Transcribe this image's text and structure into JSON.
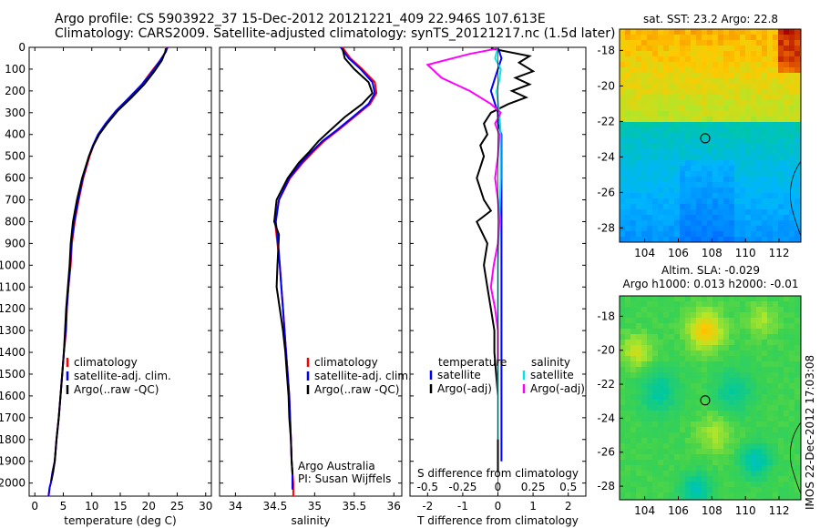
{
  "header": {
    "line1": "Argo profile: CS 5903922_37 15-Dec-2012 20121221_409 22.946S 107.613E",
    "line2": "Climatology: CARS2009. Satellite-adjusted climatology: synTS_20121217.nc (1.5d later)"
  },
  "timestamp": "IMOS 22-Dec-2012 17:03:08",
  "colors": {
    "climatology": "#ff0000",
    "satellite": "#0000ff",
    "argo": "#000000",
    "sal_satellite": "#00e5e5",
    "sal_argo": "#ff00ff"
  },
  "chart_data": [
    {
      "type": "line",
      "xlabel": "temperature (deg C)",
      "xlim": [
        -1,
        31
      ],
      "xticks": [
        0,
        5,
        10,
        15,
        20,
        25,
        30
      ],
      "ylim": [
        2060,
        0
      ],
      "yticks": [
        0,
        100,
        200,
        300,
        400,
        500,
        600,
        700,
        800,
        900,
        1000,
        1100,
        1200,
        1300,
        1400,
        1500,
        1600,
        1700,
        1800,
        1900,
        2000
      ],
      "legend": [
        "climatology",
        "satellite-adj. clim.",
        "Argo(..raw -QC)"
      ],
      "series": [
        {
          "name": "climatology",
          "color": "#ff0000",
          "x": [
            23.2,
            23.0,
            22.0,
            20.5,
            18.8,
            16.8,
            14.5,
            12.5,
            11.2,
            10.3,
            9.6,
            8.5,
            7.7,
            7.0,
            6.5,
            6.3,
            5.9,
            5.6,
            5.5,
            5.1,
            4.8,
            4.5,
            4.2,
            3.8,
            3.5,
            3.1,
            2.8,
            2.6,
            2.5,
            2.4
          ],
          "y": [
            0,
            20,
            60,
            110,
            170,
            230,
            290,
            350,
            400,
            450,
            500,
            600,
            700,
            800,
            900,
            1000,
            1100,
            1200,
            1300,
            1400,
            1500,
            1600,
            1700,
            1800,
            1900,
            1950,
            2000,
            2020,
            2040,
            2060
          ]
        },
        {
          "name": "satellite-adj. clim.",
          "color": "#0000ff",
          "x": [
            23.3,
            23.0,
            22.0,
            20.7,
            18.8,
            16.6,
            14.3,
            12.4,
            11.1,
            10.2,
            9.5,
            8.4,
            7.6,
            6.9,
            6.4,
            6.2,
            5.9,
            5.6,
            5.4,
            5.1,
            4.8,
            4.5,
            4.2,
            3.8,
            3.5,
            3.1,
            2.8,
            2.6,
            2.5,
            2.4
          ],
          "y": [
            0,
            20,
            60,
            110,
            170,
            230,
            290,
            350,
            400,
            450,
            500,
            600,
            700,
            800,
            900,
            1000,
            1100,
            1200,
            1300,
            1400,
            1500,
            1600,
            1700,
            1800,
            1900,
            1950,
            2000,
            2020,
            2040,
            2060
          ]
        },
        {
          "name": "Argo(..raw -QC)",
          "color": "#000000",
          "x": [
            23.0,
            22.9,
            22.3,
            21.0,
            19.2,
            17.0,
            14.6,
            12.7,
            11.3,
            10.3,
            9.5,
            8.3,
            7.4,
            6.7,
            6.3,
            6.1,
            5.8,
            5.5,
            5.3,
            5.1,
            4.8,
            4.5,
            4.2,
            3.8,
            3.5,
            3.2,
            2.9
          ],
          "y": [
            5,
            20,
            60,
            110,
            170,
            230,
            290,
            350,
            400,
            450,
            500,
            600,
            700,
            800,
            900,
            1000,
            1100,
            1200,
            1300,
            1400,
            1500,
            1600,
            1700,
            1800,
            1900,
            1950,
            1990
          ]
        }
      ]
    },
    {
      "type": "line",
      "xlabel": "salinity",
      "xlim": [
        33.8,
        36.1
      ],
      "xticks": [
        34,
        34.5,
        35,
        35.5,
        36
      ],
      "ylim": [
        2060,
        0
      ],
      "legend": [
        "climatology",
        "satellite-adj. clim.",
        "Argo(..raw -QC)"
      ],
      "annotation": [
        "Argo Australia",
        "PI: Susan Wijffels"
      ],
      "series": [
        {
          "name": "climatology",
          "color": "#ff0000",
          "x": [
            35.35,
            35.45,
            35.6,
            35.76,
            35.78,
            35.7,
            35.5,
            35.3,
            35.12,
            34.98,
            34.85,
            34.69,
            34.55,
            34.5,
            34.53,
            34.56,
            34.58,
            34.6,
            34.62,
            34.64,
            34.66,
            34.68,
            34.69,
            34.7,
            34.71,
            34.72,
            34.73,
            34.73,
            34.73
          ],
          "y": [
            0,
            50,
            100,
            160,
            210,
            260,
            320,
            380,
            430,
            480,
            530,
            600,
            700,
            800,
            900,
            1000,
            1100,
            1200,
            1300,
            1400,
            1500,
            1600,
            1700,
            1800,
            1900,
            1950,
            2000,
            2030,
            2060
          ]
        },
        {
          "name": "satellite-adj. clim.",
          "color": "#0000ff",
          "x": [
            35.33,
            35.43,
            35.58,
            35.73,
            35.76,
            35.68,
            35.48,
            35.28,
            35.1,
            34.96,
            34.83,
            34.68,
            34.55,
            34.51,
            34.54,
            34.56,
            34.58,
            34.6,
            34.62,
            34.64,
            34.66,
            34.68,
            34.69,
            34.7,
            34.71,
            34.72,
            34.72,
            34.72
          ],
          "y": [
            0,
            50,
            100,
            160,
            210,
            260,
            320,
            380,
            430,
            480,
            530,
            600,
            700,
            800,
            900,
            1000,
            1100,
            1200,
            1300,
            1400,
            1500,
            1600,
            1700,
            1800,
            1900,
            1950,
            2000,
            2030
          ]
        },
        {
          "name": "Argo(..raw -QC)",
          "color": "#000000",
          "x": [
            35.35,
            35.38,
            35.5,
            35.68,
            35.73,
            35.6,
            35.38,
            35.2,
            35.05,
            34.93,
            34.8,
            34.66,
            34.52,
            34.49,
            34.55,
            34.53,
            34.52,
            34.56,
            34.6,
            34.63,
            34.65,
            34.67,
            34.68,
            34.7,
            34.71,
            34.72
          ],
          "y": [
            5,
            50,
            100,
            160,
            210,
            260,
            320,
            380,
            430,
            480,
            530,
            600,
            700,
            800,
            860,
            1000,
            1100,
            1200,
            1300,
            1400,
            1500,
            1600,
            1700,
            1800,
            1900,
            1960
          ]
        }
      ]
    },
    {
      "type": "line",
      "xlabel": "T difference from climatology",
      "xlabel_top": "S difference from climatology",
      "xlim": [
        -2.5,
        2.5
      ],
      "xticks": [
        -2,
        -1,
        0,
        1,
        2
      ],
      "xticks_top": [
        "-0.5",
        "-0.25",
        "0",
        "0.25",
        "0.5"
      ],
      "ylim": [
        2060,
        0
      ],
      "legend_temperature": {
        "title": "temperature",
        "items": [
          "satellite",
          "Argo(-adj)"
        ]
      },
      "legend_salinity": {
        "title": "salinity",
        "items": [
          "satellite",
          "Argo(-adj)"
        ]
      },
      "series": [
        {
          "name": "temperature satellite",
          "color": "#0000ff",
          "x": [
            0.0,
            0.1,
            0.0,
            -0.1,
            -0.2,
            -0.1,
            0.0,
            0.0,
            0.1,
            0.1,
            0.1,
            0.1,
            0.1,
            0.1,
            0.1,
            0.1,
            0.1,
            0.1,
            0.1,
            0.1,
            0.1,
            0.1
          ],
          "y": [
            0,
            50,
            100,
            150,
            200,
            250,
            300,
            350,
            400,
            500,
            600,
            700,
            800,
            900,
            1000,
            1100,
            1200,
            1300,
            1400,
            1500,
            1700,
            1900
          ]
        },
        {
          "name": "temperature Argo(-adj)",
          "color": "#000000",
          "x": [
            -0.2,
            0.9,
            0.6,
            1.0,
            0.5,
            0.9,
            0.4,
            0.8,
            0.3,
            -0.2,
            -0.4,
            -0.3,
            -0.5,
            -0.4,
            -0.6,
            -0.4,
            -0.2,
            -0.6,
            -0.3,
            -0.4,
            -0.3,
            -0.2,
            -0.1,
            -0.1,
            0.0,
            0.0,
            0.0
          ],
          "y": [
            5,
            40,
            70,
            110,
            140,
            170,
            200,
            230,
            260,
            300,
            350,
            400,
            450,
            500,
            600,
            700,
            750,
            800,
            900,
            1000,
            1100,
            1200,
            1300,
            1400,
            1600,
            1800,
            1950
          ]
        },
        {
          "name": "salinity satellite",
          "color": "#00e5e5",
          "x": [
            0.0,
            -0.02,
            0.02,
            0.01,
            -0.01,
            0.0,
            0.01,
            0.02,
            0.02,
            0.02,
            0.01,
            0.0,
            0.0,
            0.0,
            0.0,
            0.0
          ],
          "y": [
            0,
            50,
            100,
            150,
            200,
            250,
            300,
            400,
            500,
            600,
            800,
            1000,
            1200,
            1400,
            1600,
            1800
          ]
        },
        {
          "name": "salinity Argo(-adj)",
          "color": "#ff00ff",
          "x": [
            0.0,
            -0.2,
            -0.5,
            -0.4,
            -0.2,
            -0.05,
            0.02,
            -0.02,
            0.01,
            0.0,
            -0.02,
            0.0,
            0.01,
            0.0,
            -0.03,
            -0.05,
            -0.02,
            0.0,
            0.0,
            0.0
          ],
          "y": [
            5,
            30,
            80,
            140,
            200,
            260,
            300,
            350,
            400,
            500,
            600,
            700,
            800,
            900,
            1000,
            1100,
            1200,
            1300,
            1400,
            1450
          ]
        }
      ]
    },
    {
      "type": "heatmap",
      "title": "sat. SST: 23.2 Argo: 22.8",
      "xticks": [
        "104",
        "106",
        "108",
        "110",
        "112"
      ],
      "yticks": [
        "-18",
        "-20",
        "-22",
        "-24",
        "-26",
        "-28"
      ],
      "xlim": [
        102.5,
        113.3
      ],
      "ylim": [
        -28.8,
        -16.8
      ],
      "marker": {
        "lon": 107.6,
        "lat": -22.95
      }
    },
    {
      "type": "heatmap",
      "title": "Altim. SLA: -0.029",
      "subtitle": "Argo h1000: 0.013 h2000: -0.01",
      "xticks": [
        "104",
        "106",
        "108",
        "110",
        "112"
      ],
      "yticks": [
        "-18",
        "-20",
        "-22",
        "-24",
        "-26",
        "-28"
      ],
      "xlim": [
        102.5,
        113.3
      ],
      "ylim": [
        -28.8,
        -16.8
      ],
      "marker": {
        "lon": 107.6,
        "lat": -22.95
      }
    }
  ]
}
